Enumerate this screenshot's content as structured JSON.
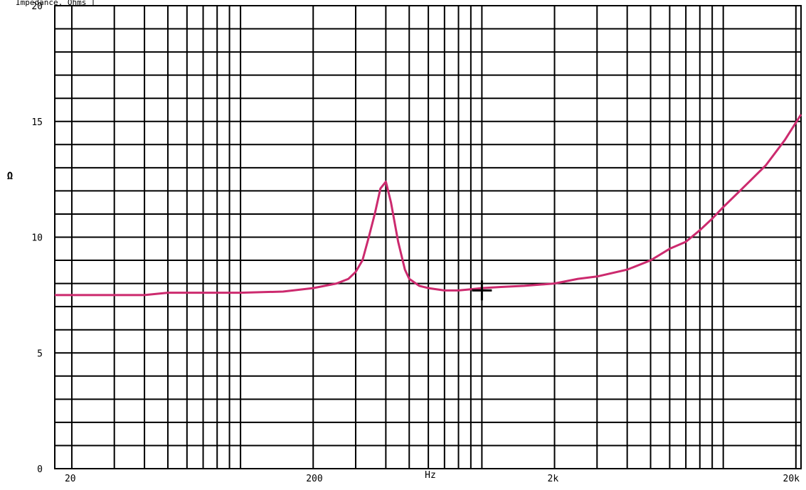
{
  "header": {
    "partial_text": "Impedance, Ohms ["
  },
  "chart_data": {
    "type": "line",
    "title": "",
    "xlabel": "Hz",
    "ylabel": "Ω",
    "xscale": "log",
    "xlim": [
      17,
      21000
    ],
    "ylim": [
      0,
      20
    ],
    "x_tick_labels": [
      {
        "value": 20,
        "label": "20"
      },
      {
        "value": 200,
        "label": "200"
      },
      {
        "value": 2000,
        "label": "2k"
      },
      {
        "value": 20000,
        "label": "20k"
      }
    ],
    "y_tick_labels": [
      {
        "value": 0,
        "label": "0"
      },
      {
        "value": 5,
        "label": "5"
      },
      {
        "value": 10,
        "label": "10"
      },
      {
        "value": 15,
        "label": "15"
      },
      {
        "value": 20,
        "label": "20"
      }
    ],
    "grid": true,
    "line_color": "#cc2a6e",
    "series": [
      {
        "name": "",
        "x": [
          17,
          20,
          30,
          40,
          50,
          60,
          80,
          100,
          150,
          200,
          250,
          280,
          300,
          320,
          340,
          360,
          380,
          400,
          420,
          450,
          480,
          500,
          550,
          600,
          700,
          800,
          900,
          1000,
          1200,
          1500,
          2000,
          2500,
          3000,
          4000,
          5000,
          6000,
          7000,
          8000,
          9000,
          10000,
          12000,
          15000,
          18000,
          21000
        ],
        "y": [
          7.5,
          7.5,
          7.5,
          7.5,
          7.6,
          7.6,
          7.6,
          7.6,
          7.65,
          7.8,
          8.0,
          8.2,
          8.5,
          9.0,
          10.0,
          11.0,
          12.1,
          12.4,
          11.5,
          9.8,
          8.6,
          8.2,
          7.9,
          7.8,
          7.7,
          7.7,
          7.75,
          7.8,
          7.85,
          7.9,
          8.0,
          8.2,
          8.3,
          8.6,
          9.0,
          9.5,
          9.8,
          10.3,
          10.8,
          11.3,
          12.1,
          13.1,
          14.2,
          15.3
        ]
      }
    ],
    "cursor_marker": {
      "x": 1000,
      "y": 7.7
    }
  }
}
